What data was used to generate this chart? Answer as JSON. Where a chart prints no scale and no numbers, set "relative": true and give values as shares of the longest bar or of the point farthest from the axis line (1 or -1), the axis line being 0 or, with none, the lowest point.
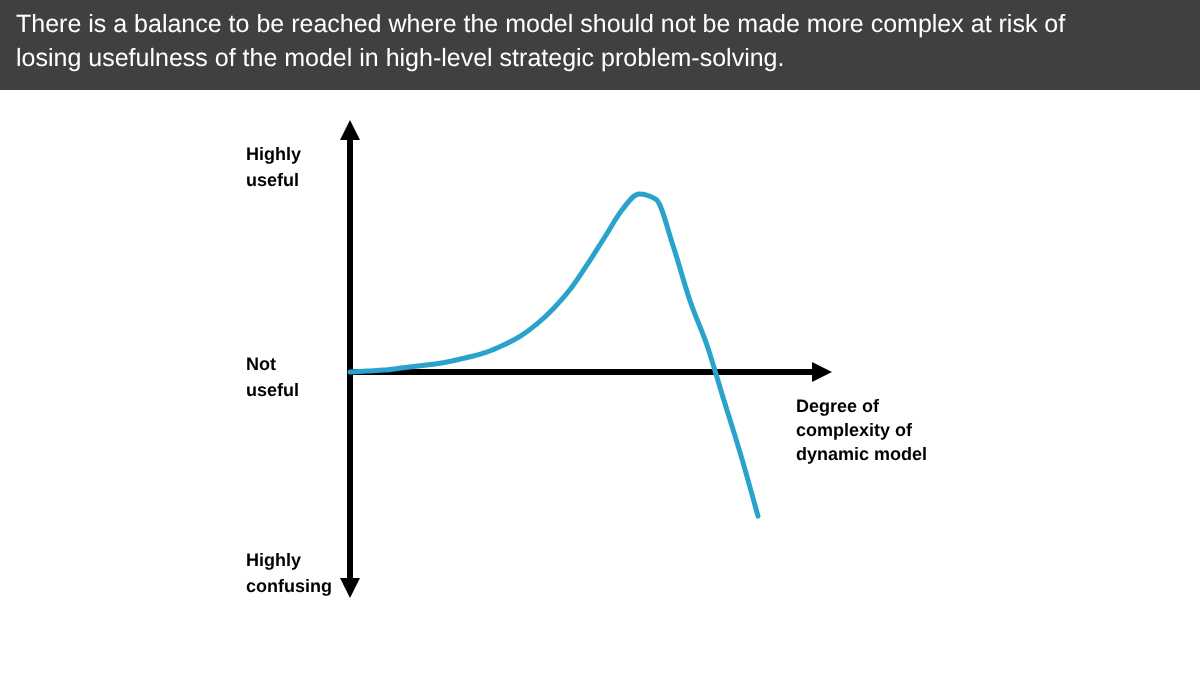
{
  "chart_data": {
    "type": "line",
    "title": "There is a balance to be reached where the model should not be made more complex at risk of losing usefulness of the model in high-level strategic problem-solving.",
    "xlabel": "Degree of complexity of dynamic model",
    "annotations": [
      "Highly useful",
      "Not useful",
      "Highly confusing"
    ],
    "relative": true,
    "categories": [
      null,
      null,
      null,
      null,
      null,
      null,
      null,
      null,
      null,
      null,
      null,
      null,
      null,
      null,
      null,
      null,
      null,
      null,
      null,
      null,
      null,
      null,
      null,
      null,
      null
    ],
    "series": [
      {
        "color": "#29a3cc",
        "values": [
          0,
          0.006,
          0.011,
          0.022,
          0.034,
          0.045,
          0.062,
          0.084,
          0.11,
          0.15,
          0.2,
          0.27,
          0.36,
          0.47,
          0.61,
          0.76,
          0.91,
          1.0,
          0.97,
          0.71,
          0.4,
          0.15,
          -0.16,
          -0.47,
          -0.81
        ]
      }
    ],
    "marker": "none",
    "line_style": "solid"
  }
}
